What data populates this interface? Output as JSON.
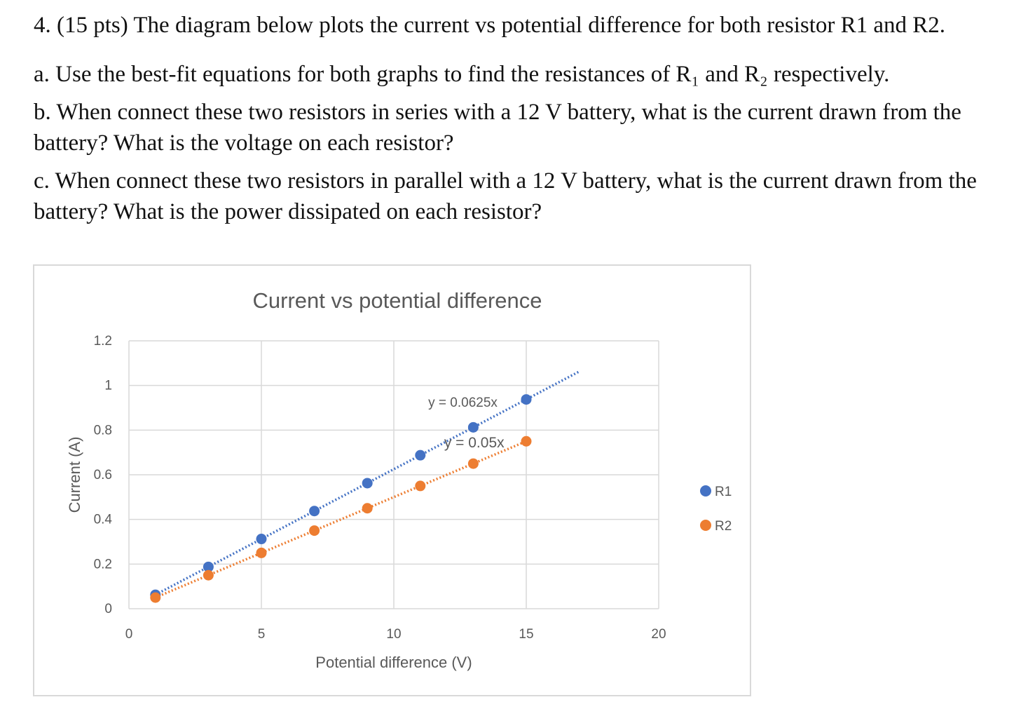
{
  "question": {
    "title": "4. (15 pts) The diagram below plots the current vs potential difference for both resistor R1 and R2.",
    "part_a": "a. Use the best-fit equations for both graphs to find the resistances of R₁ and R₂ respectively.",
    "part_b": "b. When connect these two resistors in series with a 12 V battery, what is the current drawn from the battery? What is the voltage on each resistor?",
    "part_c": "c. When connect these two resistors in parallel with a 12 V battery, what is the current drawn from the battery? What is the power dissipated on each resistor?"
  },
  "chart_data": {
    "type": "scatter",
    "title": "Current vs potential difference",
    "xlabel": "Potential difference (V)",
    "ylabel": "Current (A)",
    "xlim": [
      0,
      20
    ],
    "ylim": [
      0,
      1.2
    ],
    "xticks": [
      "0",
      "5",
      "10",
      "15",
      "20"
    ],
    "yticks": [
      "0",
      "0.2",
      "0.4",
      "0.6",
      "0.8",
      "1",
      "1.2"
    ],
    "grid": true,
    "legend": "right",
    "series": [
      {
        "name": "R1",
        "color": "#4472c4",
        "x": [
          1,
          3,
          5,
          7,
          9,
          11,
          13,
          15
        ],
        "y": [
          0.0625,
          0.1875,
          0.3125,
          0.4375,
          0.5625,
          0.6875,
          0.8125,
          0.9375
        ],
        "trendline": {
          "label": "y = 0.0625x",
          "slope": 0.0625,
          "x_range": [
            1,
            17
          ]
        }
      },
      {
        "name": "R2",
        "color": "#ed7d31",
        "x": [
          1,
          3,
          5,
          7,
          9,
          11,
          13,
          15
        ],
        "y": [
          0.05,
          0.15,
          0.25,
          0.35,
          0.45,
          0.55,
          0.65,
          0.75
        ],
        "trendline": {
          "label": "y = 0.05x",
          "slope": 0.05,
          "x_range": [
            1,
            15
          ]
        }
      }
    ]
  }
}
